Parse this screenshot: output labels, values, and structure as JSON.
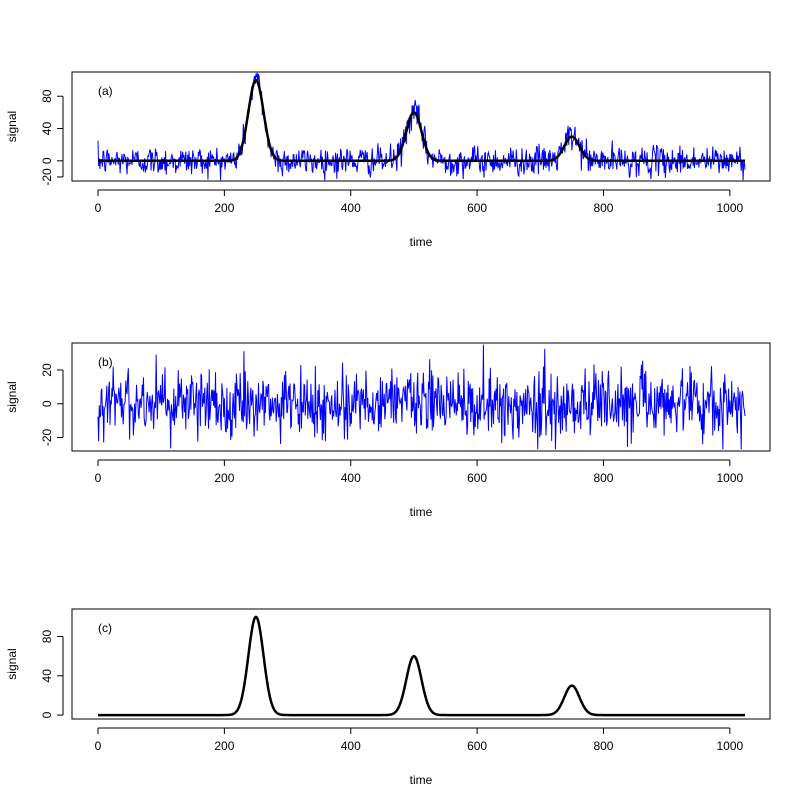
{
  "chart_data": [
    {
      "type": "line",
      "panel_label": "(a)",
      "xlabel": "time",
      "ylabel": "signal",
      "xlim": [
        0,
        1024
      ],
      "ylim": [
        -25,
        110
      ],
      "xticks": [
        0,
        200,
        400,
        600,
        800,
        1000
      ],
      "yticks": [
        -20,
        0,
        40,
        80
      ],
      "ytick_labels": [
        "-20",
        "0",
        "40",
        "80"
      ],
      "colors": {
        "noisy": "#0000ff",
        "smooth": "#000000"
      },
      "series": [
        {
          "style": "noisy",
          "description_points": "clean signal plus Gaussian-like noise, sd ~ 9",
          "x_step": 1,
          "n": 1024
        },
        {
          "style": "smooth",
          "peaks": [
            {
              "center": 250,
              "height": 100,
              "width": 12
            },
            {
              "center": 500,
              "height": 60,
              "width": 12
            },
            {
              "center": 750,
              "height": 30,
              "width": 12
            }
          ]
        }
      ]
    },
    {
      "type": "line",
      "panel_label": "(b)",
      "xlabel": "time",
      "ylabel": "signal",
      "xlim": [
        0,
        1024
      ],
      "ylim": [
        -28,
        36
      ],
      "xticks": [
        0,
        200,
        400,
        600,
        800,
        1000
      ],
      "yticks": [
        -20,
        0,
        20
      ],
      "ytick_labels": [
        "-20",
        "0",
        "20"
      ],
      "colors": {
        "noisy": "#0000ff"
      },
      "series": [
        {
          "style": "noisy",
          "x_step": 1,
          "n": 1024
        }
      ]
    },
    {
      "type": "line",
      "panel_label": "(c)",
      "xlabel": "time",
      "ylabel": "signal",
      "xlim": [
        0,
        1024
      ],
      "ylim": [
        -4,
        108
      ],
      "xticks": [
        0,
        200,
        400,
        600,
        800,
        1000
      ],
      "yticks": [
        0,
        40,
        80
      ],
      "ytick_labels": [
        "0",
        "40",
        "80"
      ],
      "colors": {
        "smooth": "#000000"
      },
      "series": [
        {
          "style": "smooth",
          "peaks": [
            {
              "center": 250,
              "height": 100,
              "width": 12
            },
            {
              "center": 500,
              "height": 60,
              "width": 12
            },
            {
              "center": 750,
              "height": 30,
              "width": 12
            }
          ]
        }
      ]
    }
  ]
}
